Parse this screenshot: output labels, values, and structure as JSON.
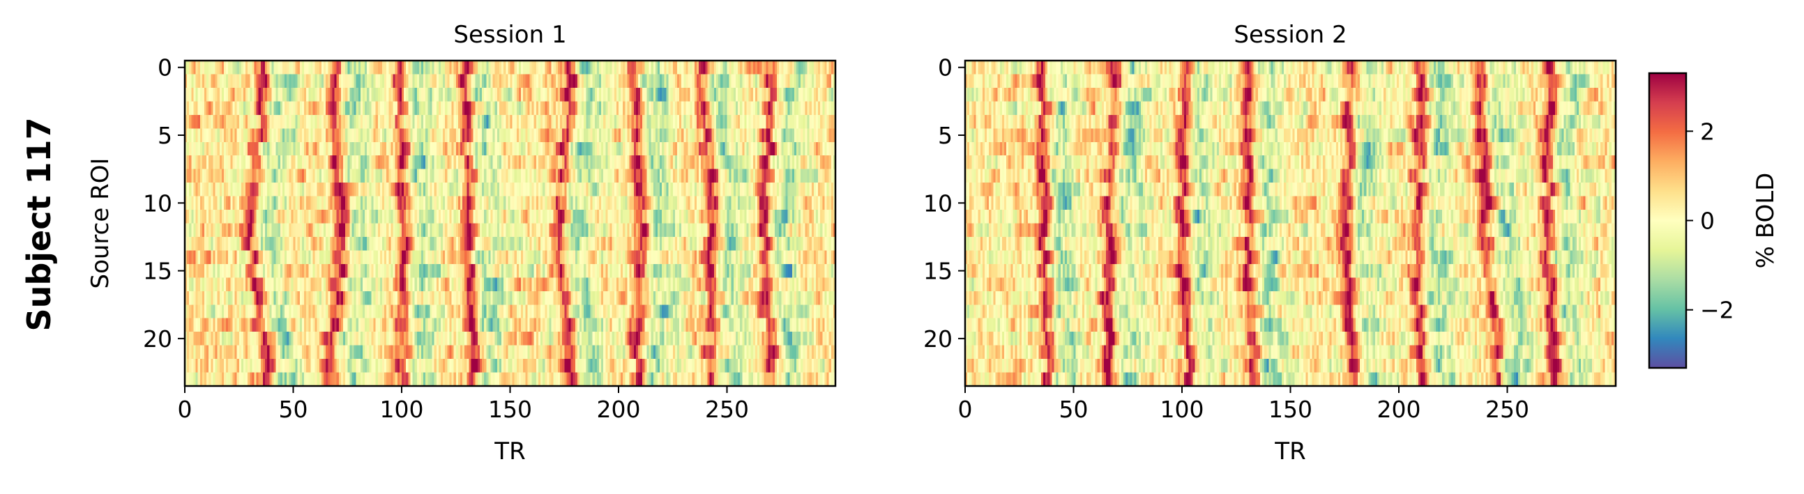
{
  "figure": {
    "row_label": "Subject 117"
  },
  "colorbar": {
    "label": "% BOLD",
    "colormap": "Spectral_r",
    "range": [
      -3.3,
      3.3
    ],
    "ticks": [
      {
        "value": 2,
        "label": "2"
      },
      {
        "value": 0,
        "label": "0"
      },
      {
        "value": -2,
        "label": "−2"
      }
    ],
    "colors": [
      "#5e4fa2",
      "#3288bd",
      "#66c2a5",
      "#abdda4",
      "#e6f598",
      "#ffffbf",
      "#fee08b",
      "#fdae61",
      "#f46d43",
      "#d53e4f",
      "#9e0142"
    ]
  },
  "chart_data": [
    {
      "type": "heatmap",
      "title": "Session 1",
      "xlabel": "TR",
      "ylabel": "Source ROI",
      "n_rows": 24,
      "n_cols": 300,
      "xlim": [
        0,
        300
      ],
      "ylim": [
        23.5,
        -0.5
      ],
      "x_ticks": [
        {
          "value": 0,
          "label": "0"
        },
        {
          "value": 50,
          "label": "50"
        },
        {
          "value": 100,
          "label": "100"
        },
        {
          "value": 150,
          "label": "150"
        },
        {
          "value": 200,
          "label": "200"
        },
        {
          "value": 250,
          "label": "250"
        }
      ],
      "y_ticks": [
        {
          "value": 0,
          "label": "0"
        },
        {
          "value": 5,
          "label": "5"
        },
        {
          "value": 10,
          "label": "10"
        },
        {
          "value": 15,
          "label": "15"
        },
        {
          "value": 20,
          "label": "20"
        }
      ],
      "peak_times_by_roi": {
        "rows": [
          0,
          12,
          23
        ],
        "peaks": [
          [
            36,
            68,
            98,
            128,
            177,
            207,
            238,
            270
          ],
          [
            30,
            72,
            101,
            130,
            172,
            210,
            243,
            267
          ],
          [
            38,
            67,
            100,
            133,
            178,
            208,
            243,
            270
          ]
        ]
      },
      "background_level": 0.3,
      "peak_amplitude": 2.6
    },
    {
      "type": "heatmap",
      "title": "Session 2",
      "xlabel": "TR",
      "ylabel": "",
      "n_rows": 24,
      "n_cols": 300,
      "xlim": [
        0,
        300
      ],
      "ylim": [
        23.5,
        -0.5
      ],
      "x_ticks": [
        {
          "value": 0,
          "label": "0"
        },
        {
          "value": 50,
          "label": "50"
        },
        {
          "value": 100,
          "label": "100"
        },
        {
          "value": 150,
          "label": "150"
        },
        {
          "value": 200,
          "label": "200"
        },
        {
          "value": 250,
          "label": "250"
        }
      ],
      "y_ticks": [
        {
          "value": 0,
          "label": "0"
        },
        {
          "value": 5,
          "label": "5"
        },
        {
          "value": 10,
          "label": "10"
        },
        {
          "value": 15,
          "label": "15"
        },
        {
          "value": 20,
          "label": "20"
        }
      ],
      "peak_times_by_roi": {
        "rows": [
          0,
          12,
          23
        ],
        "peaks": [
          [
            35,
            68,
            100,
            130,
            178,
            210,
            237,
            270
          ],
          [
            36,
            66,
            100,
            130,
            175,
            208,
            240,
            268
          ],
          [
            38,
            66,
            103,
            132,
            178,
            210,
            245,
            272
          ]
        ]
      },
      "background_level": 0.3,
      "peak_amplitude": 2.7
    }
  ]
}
